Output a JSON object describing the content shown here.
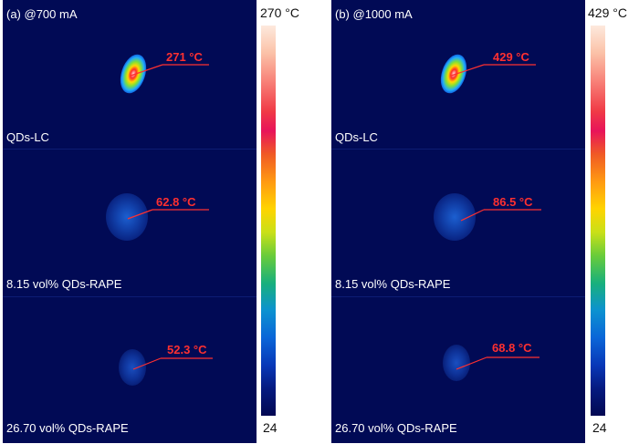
{
  "panel_a": {
    "header": "(a)  @700 mA",
    "rows": [
      {
        "label": "QDs-LC",
        "temperature": "271 °C"
      },
      {
        "label": "8.15 vol% QDs-RAPE",
        "temperature": "62.8 °C"
      },
      {
        "label": "26.70 vol% QDs-RAPE",
        "temperature": "52.3 °C"
      }
    ],
    "colorbar": {
      "max_label": "270 °C",
      "min_label": "24"
    }
  },
  "panel_b": {
    "header": "(b) @1000 mA",
    "rows": [
      {
        "label": "QDs-LC",
        "temperature": "429 °C"
      },
      {
        "label": "8.15 vol% QDs-RAPE",
        "temperature": "86.5 °C"
      },
      {
        "label": "26.70 vol% QDs-RAPE",
        "temperature": "68.8 °C"
      }
    ],
    "colorbar": {
      "max_label": "429 °C",
      "min_label": "24"
    }
  },
  "colors": {
    "background": "#010a55",
    "annotation": "#ff3030",
    "label": "#ffffff"
  }
}
